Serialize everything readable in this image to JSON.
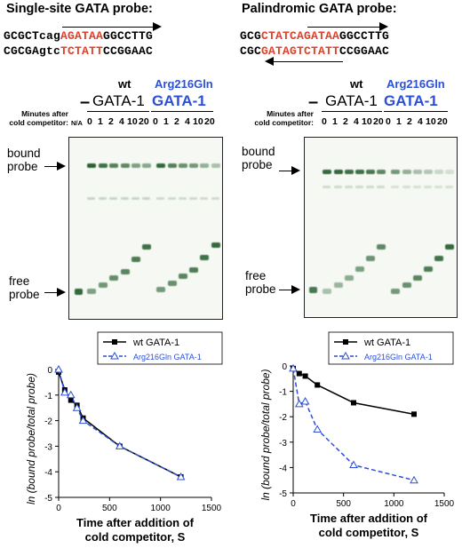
{
  "left": {
    "title": "Single-site GATA probe:",
    "seq_top": [
      "GCGCTcag",
      "AGATAA",
      "GGCCTTG"
    ],
    "seq_bottom": [
      "CGCGAgtc",
      "TCTATT",
      "CCGGAAC"
    ],
    "dash": "–",
    "wt": "wt",
    "gata1": "GATA-1",
    "mut_label": "Arg216Gln",
    "mut_gata": "GATA-1",
    "minutes_label": "Minutes after\ncold competitor:",
    "na": "N/A",
    "lanes_wt": [
      "0",
      "1",
      "2",
      "4",
      "10",
      "20"
    ],
    "lanes_mut": [
      "0",
      "1",
      "2",
      "4",
      "10",
      "20"
    ],
    "bound_label": "bound\nprobe",
    "free_label": "free\nprobe"
  },
  "right": {
    "title": "Palindromic GATA probe:",
    "seq_top": [
      "GCG",
      "CTATCAGATAA",
      "GGCCTTG"
    ],
    "seq_bottom": [
      "CGC",
      "GATAGTCTATT",
      "CCGGAAC"
    ],
    "dash": "–",
    "wt": "wt",
    "gata1": "GATA-1",
    "mut_label": "Arg216Gln",
    "mut_gata": "GATA-1",
    "minutes_label": "Minutes after\ncold competitor:",
    "lanes_wt": [
      "0",
      "1",
      "2",
      "4",
      "10",
      "20"
    ],
    "lanes_mut": [
      "0",
      "1",
      "2",
      "4",
      "10",
      "20"
    ],
    "bound_label": "bound\nprobe",
    "free_label": "free\nprobe"
  },
  "colors": {
    "red": "#e0402a",
    "blue": "#2b4fd6",
    "band_dark": "#1f5a2a",
    "band_light": "#6f9a72"
  },
  "chart_data": [
    {
      "type": "line",
      "title": "",
      "xlabel": "Time after addition of\ncold competitor, S",
      "ylabel": "ln (bound probe/total probe)",
      "xlim": [
        0,
        1500
      ],
      "ylim": [
        -5,
        0
      ],
      "xticks": [
        "0",
        "500",
        "1000",
        "1500"
      ],
      "yticks": [
        "0",
        "-1",
        "-2",
        "-3",
        "-4",
        "-5"
      ],
      "legend_position": "top-right",
      "series": [
        {
          "name": "wt GATA-1",
          "x": [
            0,
            60,
            120,
            180,
            240,
            600,
            1200
          ],
          "y": [
            -0.1,
            -0.8,
            -1.2,
            -1.4,
            -1.9,
            -3.0,
            -4.2
          ]
        },
        {
          "name": "Arg216Gln GATA-1",
          "x": [
            0,
            60,
            120,
            180,
            240,
            600,
            1200
          ],
          "y": [
            0,
            -0.9,
            -1.0,
            -1.5,
            -2.0,
            -3.0,
            -4.2
          ]
        }
      ]
    },
    {
      "type": "line",
      "title": "",
      "xlabel": "Time after addition of\ncold competitor, S",
      "ylabel": "ln (bound probe/total probe)",
      "xlim": [
        0,
        1500
      ],
      "ylim": [
        -5,
        0
      ],
      "xticks": [
        "0",
        "500",
        "1000",
        "1500"
      ],
      "yticks": [
        "0",
        "-1",
        "-2",
        "-3",
        "-4",
        "-5"
      ],
      "legend_position": "top-right",
      "series": [
        {
          "name": "wt GATA-1",
          "x": [
            0,
            60,
            120,
            240,
            600,
            1200
          ],
          "y": [
            -0.1,
            -0.3,
            -0.4,
            -0.75,
            -1.45,
            -1.9
          ]
        },
        {
          "name": "Arg216Gln GATA-1",
          "x": [
            0,
            60,
            120,
            240,
            600,
            1200
          ],
          "y": [
            -0.1,
            -1.5,
            -1.4,
            -2.5,
            -3.9,
            -4.5
          ]
        }
      ]
    }
  ]
}
